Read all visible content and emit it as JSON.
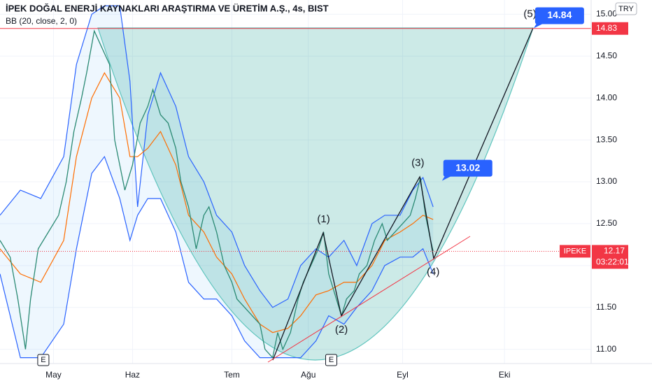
{
  "chart_data": {
    "type": "line",
    "title": "İPEK DOĞAL ENERJİ KAYNAKLARI ARAŞTIRMA VE ÜRETİM A.Ş., 4s, BIST",
    "subtitle": "BB (20, close, 2, 0)",
    "currency": "TRY",
    "symbol": "IPEKE",
    "last_price": {
      "value": 12.17,
      "label": "12.17"
    },
    "countdown": "03:22:01",
    "horizontal_line": {
      "value": 14.83,
      "label": "14.83",
      "color": "#f23645"
    },
    "xlim": [
      0,
      232
    ],
    "ylim": [
      10.83,
      15.17
    ],
    "xticks": [
      {
        "value": 21,
        "label": "May"
      },
      {
        "value": 52,
        "label": "Haz"
      },
      {
        "value": 91,
        "label": "Tem"
      },
      {
        "value": 121,
        "label": "Ağu"
      },
      {
        "value": 158,
        "label": "Eyl"
      },
      {
        "value": 198,
        "label": "Eki"
      }
    ],
    "yticks": [
      {
        "value": 11,
        "label": "11.00"
      },
      {
        "value": 11.5,
        "label": "11.50"
      },
      {
        "value": 12,
        "label": "12.00"
      },
      {
        "value": 12.5,
        "label": "12.50"
      },
      {
        "value": 13,
        "label": "13.00"
      },
      {
        "value": 13.5,
        "label": "13.50"
      },
      {
        "value": 14,
        "label": "14.00"
      },
      {
        "value": 14.5,
        "label": "14.50"
      },
      {
        "value": 15,
        "label": "15.00"
      }
    ],
    "series": [
      {
        "color": "#2962ff",
        "x": [
          0,
          8,
          16,
          25,
          30,
          36,
          41,
          47,
          51,
          54,
          58,
          63,
          69,
          74,
          80,
          85,
          91,
          96,
          102,
          107,
          113,
          118,
          124,
          129,
          135,
          140,
          146,
          151,
          157,
          162,
          166,
          170
        ],
        "values": [
          12.6,
          12.9,
          12.8,
          13.3,
          14.4,
          15.0,
          15.1,
          15.1,
          14.2,
          12.7,
          13.8,
          14.3,
          13.9,
          13.3,
          13.0,
          12.6,
          12.4,
          12.0,
          11.7,
          11.5,
          11.6,
          12.0,
          12.2,
          12.1,
          12.3,
          12.0,
          12.5,
          12.6,
          12.6,
          12.9,
          13.05,
          12.7
        ]
      },
      {
        "color": "#2962ff",
        "x": [
          0,
          8,
          16,
          25,
          30,
          36,
          41,
          47,
          51,
          54,
          58,
          63,
          69,
          74,
          80,
          85,
          91,
          96,
          102,
          107,
          113,
          118,
          124,
          129,
          135,
          140,
          146,
          151,
          157,
          162,
          166,
          170
        ],
        "values": [
          11.9,
          10.9,
          10.9,
          11.3,
          12.2,
          13.1,
          13.3,
          12.8,
          12.3,
          12.6,
          12.8,
          12.8,
          12.4,
          11.8,
          11.6,
          11.6,
          11.4,
          11.1,
          10.9,
          10.9,
          10.9,
          10.9,
          11.1,
          11.4,
          11.3,
          11.5,
          11.7,
          12.0,
          12.1,
          12.1,
          12.2,
          11.9
        ]
      },
      {
        "color": "#ff6d00",
        "x": [
          0,
          8,
          16,
          25,
          30,
          36,
          41,
          47,
          51,
          54,
          58,
          63,
          69,
          74,
          80,
          85,
          91,
          96,
          102,
          107,
          113,
          118,
          124,
          129,
          135,
          140,
          146,
          151,
          157,
          162,
          166,
          170
        ],
        "values": [
          12.2,
          11.9,
          11.8,
          12.3,
          13.3,
          14.0,
          14.3,
          14.0,
          13.3,
          13.3,
          13.4,
          13.6,
          13.2,
          12.6,
          12.4,
          12.1,
          11.9,
          11.6,
          11.3,
          11.2,
          11.25,
          11.4,
          11.65,
          11.7,
          11.8,
          11.8,
          12.0,
          12.3,
          12.4,
          12.5,
          12.6,
          12.55
        ]
      },
      {
        "color": "#2b8a74",
        "x": [
          0,
          4,
          7,
          10,
          12,
          15,
          19,
          23,
          26,
          29,
          32,
          34,
          37,
          40,
          43,
          45,
          47,
          49,
          52,
          55,
          58,
          60,
          63,
          66,
          69,
          71,
          74,
          77,
          80,
          82,
          85,
          88,
          91,
          93,
          96,
          99,
          102,
          104,
          107,
          109,
          111,
          114,
          117,
          119,
          122,
          125,
          127,
          129,
          132,
          134,
          136,
          139,
          141,
          144,
          147,
          150,
          152,
          155,
          158,
          161,
          163,
          165,
          167,
          169,
          170
        ],
        "values": [
          12.3,
          12.1,
          11.6,
          11.0,
          11.6,
          12.2,
          12.4,
          12.6,
          13.0,
          13.6,
          14.0,
          14.3,
          14.8,
          14.6,
          14.4,
          13.5,
          13.2,
          12.9,
          13.2,
          13.7,
          13.9,
          14.1,
          13.8,
          13.7,
          13.4,
          13.0,
          12.7,
          12.2,
          12.6,
          12.7,
          12.4,
          12.0,
          11.8,
          11.6,
          11.5,
          11.4,
          11.3,
          11.0,
          10.9,
          11.2,
          11.0,
          11.2,
          11.6,
          11.8,
          12.0,
          12.2,
          12.4,
          11.9,
          11.6,
          11.4,
          11.6,
          11.7,
          11.9,
          12.0,
          12.3,
          12.5,
          12.3,
          12.4,
          12.5,
          12.6,
          12.8,
          13.05,
          12.6,
          12.3,
          12.17
        ]
      }
    ],
    "annotations": [
      {
        "text": "(1)",
        "x": 127,
        "y": 12.55
      },
      {
        "text": "(2)",
        "x": 134,
        "y": 11.23
      },
      {
        "text": "(3)",
        "x": 164,
        "y": 13.22
      },
      {
        "text": "(4)",
        "x": 170,
        "y": 11.92
      },
      {
        "text": "(5)",
        "x": 208,
        "y": 15.0
      }
    ],
    "targets": [
      {
        "value": 13.02,
        "label": "13.02",
        "x": 174
      },
      {
        "value": 14.84,
        "label": "14.84",
        "x": 210
      }
    ],
    "event_markers": [
      {
        "text": "E",
        "x": 17
      },
      {
        "text": "E",
        "x": 130
      }
    ]
  }
}
